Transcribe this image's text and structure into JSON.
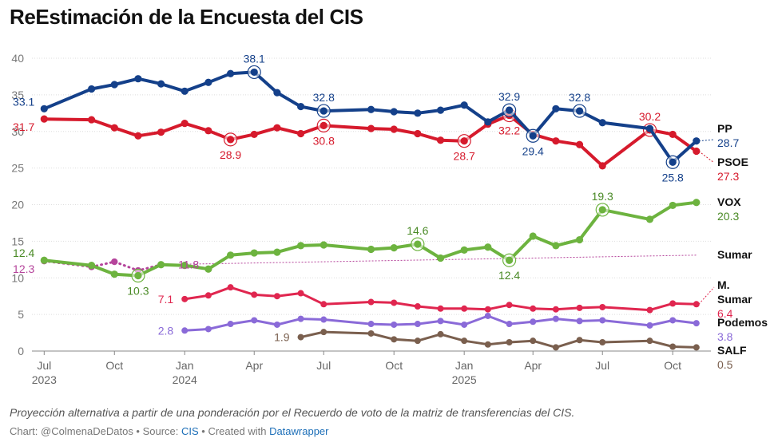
{
  "title": "ReEstimación de la Encuesta del CIS",
  "footer": {
    "note": "Proyección alternativa a partir de una ponderación por el Recuerdo de voto de la matriz de transferencias del CIS.",
    "chart_prefix": "Chart: @ColmenaDeDatos • Source: ",
    "source": "CIS",
    "created_prefix": " • Created with ",
    "tool": "Datawrapper"
  },
  "chart_data": {
    "type": "line",
    "title": "ReEstimación de la Encuesta del CIS",
    "xlabel": "",
    "ylabel": "",
    "ylim": [
      0,
      40
    ],
    "yticks": [
      0,
      5,
      10,
      15,
      20,
      25,
      30,
      35,
      40
    ],
    "grid": true,
    "xlim": [
      "2023-06-15",
      "2025-11-20"
    ],
    "xticks": [
      {
        "date": "2023-07-01",
        "label": "Jul",
        "year": "2023"
      },
      {
        "date": "2023-10-01",
        "label": "Oct",
        "year": ""
      },
      {
        "date": "2024-01-01",
        "label": "Jan",
        "year": "2024"
      },
      {
        "date": "2024-04-01",
        "label": "Apr",
        "year": ""
      },
      {
        "date": "2024-07-01",
        "label": "Jul",
        "year": ""
      },
      {
        "date": "2024-10-01",
        "label": "Oct",
        "year": ""
      },
      {
        "date": "2025-01-01",
        "label": "Jan",
        "year": "2025"
      },
      {
        "date": "2025-04-01",
        "label": "Apr",
        "year": ""
      },
      {
        "date": "2025-07-01",
        "label": "Jul",
        "year": ""
      },
      {
        "date": "2025-10-01",
        "label": "Oct",
        "year": ""
      }
    ],
    "series": [
      {
        "name": "PP",
        "color": "#14408a",
        "end_value": "28.7",
        "points": [
          [
            "2023-07-01",
            33.1
          ],
          [
            "2023-09-01",
            35.8
          ],
          [
            "2023-10-01",
            36.4
          ],
          [
            "2023-11-01",
            37.2
          ],
          [
            "2023-12-01",
            36.5
          ],
          [
            "2024-01-01",
            35.5
          ],
          [
            "2024-02-01",
            36.7
          ],
          [
            "2024-03-01",
            37.9
          ],
          [
            "2024-04-01",
            38.1
          ],
          [
            "2024-05-01",
            35.3
          ],
          [
            "2024-06-01",
            33.4
          ],
          [
            "2024-07-01",
            32.8
          ],
          [
            "2024-09-01",
            33.0
          ],
          [
            "2024-10-01",
            32.7
          ],
          [
            "2024-11-01",
            32.5
          ],
          [
            "2024-12-01",
            32.9
          ],
          [
            "2025-01-01",
            33.6
          ],
          [
            "2025-02-01",
            31.3
          ],
          [
            "2025-03-01",
            32.9
          ],
          [
            "2025-04-01",
            29.4
          ],
          [
            "2025-05-01",
            33.1
          ],
          [
            "2025-06-01",
            32.8
          ],
          [
            "2025-07-01",
            31.2
          ],
          [
            "2025-09-01",
            30.4
          ],
          [
            "2025-10-01",
            25.8
          ],
          [
            "2025-11-01",
            28.7
          ]
        ],
        "labels": [
          {
            "date": "2023-07-01",
            "value": "33.1",
            "pos": "left-above"
          },
          {
            "date": "2024-04-01",
            "value": "38.1",
            "pos": "above"
          },
          {
            "date": "2024-07-01",
            "value": "32.8",
            "pos": "above"
          },
          {
            "date": "2025-03-01",
            "value": "32.9",
            "pos": "above"
          },
          {
            "date": "2025-04-01",
            "value": "29.4",
            "pos": "below"
          },
          {
            "date": "2025-06-01",
            "value": "32.8",
            "pos": "above"
          },
          {
            "date": "2025-10-01",
            "value": "25.8",
            "pos": "below"
          }
        ],
        "rings": [
          "2024-04-01",
          "2024-07-01",
          "2025-03-01",
          "2025-04-01",
          "2025-06-01",
          "2025-10-01"
        ]
      },
      {
        "name": "PSOE",
        "color": "#d61a2c",
        "end_value": "27.3",
        "points": [
          [
            "2023-07-01",
            31.7
          ],
          [
            "2023-09-01",
            31.6
          ],
          [
            "2023-10-01",
            30.5
          ],
          [
            "2023-11-01",
            29.4
          ],
          [
            "2023-12-01",
            29.9
          ],
          [
            "2024-01-01",
            31.1
          ],
          [
            "2024-02-01",
            30.1
          ],
          [
            "2024-03-01",
            28.9
          ],
          [
            "2024-04-01",
            29.6
          ],
          [
            "2024-05-01",
            30.5
          ],
          [
            "2024-06-01",
            29.7
          ],
          [
            "2024-07-01",
            30.8
          ],
          [
            "2024-09-01",
            30.4
          ],
          [
            "2024-10-01",
            30.3
          ],
          [
            "2024-11-01",
            29.7
          ],
          [
            "2024-12-01",
            28.8
          ],
          [
            "2025-01-01",
            28.7
          ],
          [
            "2025-02-01",
            31.0
          ],
          [
            "2025-03-01",
            32.2
          ],
          [
            "2025-04-01",
            29.6
          ],
          [
            "2025-05-01",
            28.7
          ],
          [
            "2025-06-01",
            28.2
          ],
          [
            "2025-07-01",
            25.3
          ],
          [
            "2025-09-01",
            30.2
          ],
          [
            "2025-10-01",
            29.6
          ],
          [
            "2025-11-01",
            27.3
          ]
        ],
        "labels": [
          {
            "date": "2023-07-01",
            "value": "31.7",
            "pos": "left-below"
          },
          {
            "date": "2024-03-01",
            "value": "28.9",
            "pos": "below"
          },
          {
            "date": "2024-07-01",
            "value": "30.8",
            "pos": "below"
          },
          {
            "date": "2025-01-01",
            "value": "28.7",
            "pos": "below"
          },
          {
            "date": "2025-03-01",
            "value": "32.2",
            "pos": "below"
          },
          {
            "date": "2025-09-01",
            "value": "30.2",
            "pos": "above"
          }
        ],
        "rings": [
          "2024-03-01",
          "2024-07-01",
          "2025-01-01",
          "2025-03-01",
          "2025-09-01"
        ]
      },
      {
        "name": "VOX",
        "color": "#6db33f",
        "label_color": "#4a8a26",
        "end_value": "20.3",
        "points": [
          [
            "2023-07-01",
            12.4
          ],
          [
            "2023-09-01",
            11.7
          ],
          [
            "2023-10-01",
            10.5
          ],
          [
            "2023-11-01",
            10.3
          ],
          [
            "2023-12-01",
            11.8
          ],
          [
            "2024-01-01",
            11.7
          ],
          [
            "2024-02-01",
            11.2
          ],
          [
            "2024-03-01",
            13.1
          ],
          [
            "2024-04-01",
            13.4
          ],
          [
            "2024-05-01",
            13.5
          ],
          [
            "2024-06-01",
            14.4
          ],
          [
            "2024-07-01",
            14.5
          ],
          [
            "2024-09-01",
            13.9
          ],
          [
            "2024-10-01",
            14.1
          ],
          [
            "2024-11-01",
            14.6
          ],
          [
            "2024-12-01",
            12.7
          ],
          [
            "2025-01-01",
            13.8
          ],
          [
            "2025-02-01",
            14.2
          ],
          [
            "2025-03-01",
            12.4
          ],
          [
            "2025-04-01",
            15.7
          ],
          [
            "2025-05-01",
            14.4
          ],
          [
            "2025-06-01",
            15.2
          ],
          [
            "2025-07-01",
            19.3
          ],
          [
            "2025-09-01",
            18.0
          ],
          [
            "2025-10-01",
            19.9
          ],
          [
            "2025-11-01",
            20.3
          ]
        ],
        "labels": [
          {
            "date": "2023-07-01",
            "value": "12.4",
            "pos": "left-above"
          },
          {
            "date": "2023-11-01",
            "value": "10.3",
            "pos": "below"
          },
          {
            "date": "2024-11-01",
            "value": "14.6",
            "pos": "above"
          },
          {
            "date": "2025-03-01",
            "value": "12.4",
            "pos": "below"
          },
          {
            "date": "2025-07-01",
            "value": "19.3",
            "pos": "above"
          }
        ],
        "rings": [
          "2023-11-01",
          "2024-11-01",
          "2025-03-01",
          "2025-07-01"
        ]
      },
      {
        "name": "Sumar",
        "color": "#b5449b",
        "end_value": "",
        "dotted_points": [
          [
            "2023-07-01",
            12.3
          ],
          [
            "2023-09-01",
            11.5
          ],
          [
            "2023-10-01",
            12.2
          ],
          [
            "2023-11-01",
            11.0
          ],
          [
            "2023-12-01",
            11.8
          ]
        ],
        "trend": [
          [
            "2023-12-01",
            11.8
          ],
          [
            "2025-11-01",
            13.1
          ]
        ],
        "labels": [
          {
            "date": "2023-07-01",
            "value": "12.3",
            "pos": "left-below"
          },
          {
            "date": "2023-12-15",
            "value": "11.8",
            "pos": "right"
          }
        ],
        "rings": []
      },
      {
        "name": "M. Sumar",
        "color": "#e0264f",
        "end_value": "6.4",
        "points": [
          [
            "2024-01-01",
            7.1
          ],
          [
            "2024-02-01",
            7.6
          ],
          [
            "2024-03-01",
            8.7
          ],
          [
            "2024-04-01",
            7.7
          ],
          [
            "2024-05-01",
            7.5
          ],
          [
            "2024-06-01",
            7.9
          ],
          [
            "2024-07-01",
            6.4
          ],
          [
            "2024-09-01",
            6.7
          ],
          [
            "2024-10-01",
            6.6
          ],
          [
            "2024-11-01",
            6.1
          ],
          [
            "2024-12-01",
            5.8
          ],
          [
            "2025-01-01",
            5.8
          ],
          [
            "2025-02-01",
            5.7
          ],
          [
            "2025-03-01",
            6.3
          ],
          [
            "2025-04-01",
            5.8
          ],
          [
            "2025-05-01",
            5.7
          ],
          [
            "2025-06-01",
            5.9
          ],
          [
            "2025-07-01",
            6.0
          ],
          [
            "2025-09-01",
            5.6
          ],
          [
            "2025-10-01",
            6.5
          ],
          [
            "2025-11-01",
            6.4
          ]
        ],
        "labels": [
          {
            "date": "2024-01-01",
            "value": "7.1",
            "pos": "left"
          }
        ],
        "rings": []
      },
      {
        "name": "Podemos",
        "color": "#8a6ad8",
        "end_value": "3.8",
        "points": [
          [
            "2024-01-01",
            2.8
          ],
          [
            "2024-02-01",
            3.0
          ],
          [
            "2024-03-01",
            3.7
          ],
          [
            "2024-04-01",
            4.2
          ],
          [
            "2024-05-01",
            3.6
          ],
          [
            "2024-06-01",
            4.4
          ],
          [
            "2024-07-01",
            4.3
          ],
          [
            "2024-09-01",
            3.7
          ],
          [
            "2024-10-01",
            3.6
          ],
          [
            "2024-11-01",
            3.7
          ],
          [
            "2024-12-01",
            4.1
          ],
          [
            "2025-01-01",
            3.6
          ],
          [
            "2025-02-01",
            4.8
          ],
          [
            "2025-03-01",
            3.7
          ],
          [
            "2025-04-01",
            4.0
          ],
          [
            "2025-05-01",
            4.4
          ],
          [
            "2025-06-01",
            4.1
          ],
          [
            "2025-07-01",
            4.2
          ],
          [
            "2025-09-01",
            3.5
          ],
          [
            "2025-10-01",
            4.2
          ],
          [
            "2025-11-01",
            3.8
          ]
        ],
        "labels": [
          {
            "date": "2024-01-01",
            "value": "2.8",
            "pos": "left"
          }
        ],
        "rings": []
      },
      {
        "name": "SALF",
        "color": "#7a5f4e",
        "end_value": "0.5",
        "points": [
          [
            "2024-06-01",
            1.9
          ],
          [
            "2024-07-01",
            2.6
          ],
          [
            "2024-09-01",
            2.4
          ],
          [
            "2024-10-01",
            1.6
          ],
          [
            "2024-11-01",
            1.4
          ],
          [
            "2024-12-01",
            2.3
          ],
          [
            "2025-01-01",
            1.4
          ],
          [
            "2025-02-01",
            0.9
          ],
          [
            "2025-03-01",
            1.2
          ],
          [
            "2025-04-01",
            1.4
          ],
          [
            "2025-05-01",
            0.5
          ],
          [
            "2025-06-01",
            1.5
          ],
          [
            "2025-07-01",
            1.2
          ],
          [
            "2025-09-01",
            1.4
          ],
          [
            "2025-10-01",
            0.6
          ],
          [
            "2025-11-01",
            0.5
          ]
        ],
        "labels": [
          {
            "date": "2024-06-01",
            "value": "1.9",
            "pos": "left"
          }
        ],
        "rings": []
      }
    ]
  }
}
